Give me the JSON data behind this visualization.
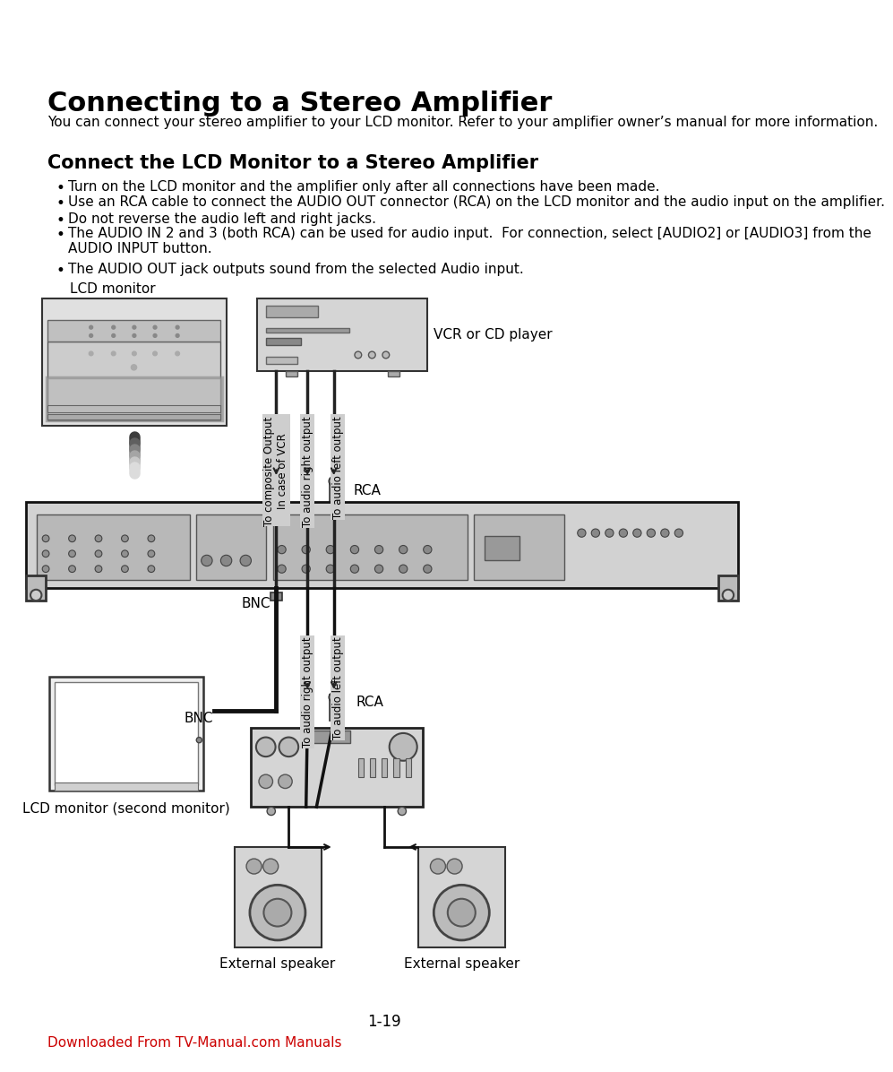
{
  "title": "Connecting to a Stereo Amplifier",
  "subtitle": "You can connect your stereo amplifier to your LCD monitor. Refer to your amplifier owner’s manual for more information.",
  "section2_title": "Connect the LCD Monitor to a Stereo Amplifier",
  "bullets": [
    "Turn on the LCD monitor and the amplifier only after all connections have been made.",
    "Use an RCA cable to connect the AUDIO OUT connector (RCA) on the LCD monitor and the audio input on the amplifier.",
    "Do not reverse the audio left and right jacks.",
    "The AUDIO IN 2 and 3 (both RCA) can be used for audio input.  For connection, select [AUDIO2] or [AUDIO3] from the\nAUDIO INPUT button.",
    "The AUDIO OUT jack outputs sound from the selected Audio input."
  ],
  "label_lcd_monitor": "LCD monitor",
  "label_vcr": "VCR or CD player",
  "label_rca_top": "RCA",
  "label_composite": "To composite Output\nIn case of VCR",
  "label_audio_right_top": "To audio right output",
  "label_audio_left_top": "To audio left output",
  "label_bnc": "BNC",
  "label_rca_bottom": "RCA",
  "label_audio_right_bot": "To audio right output",
  "label_audio_left_bot": "To audio left output",
  "label_lcd_second": "LCD monitor (second monitor)",
  "label_ext_speaker_left": "External speaker",
  "label_ext_speaker_right": "External speaker",
  "page_number": "1-19",
  "footer_link": "Downloaded From TV-Manual.com Manuals",
  "bg_color": "#ffffff",
  "text_color": "#000000",
  "link_color": "#cc0000"
}
